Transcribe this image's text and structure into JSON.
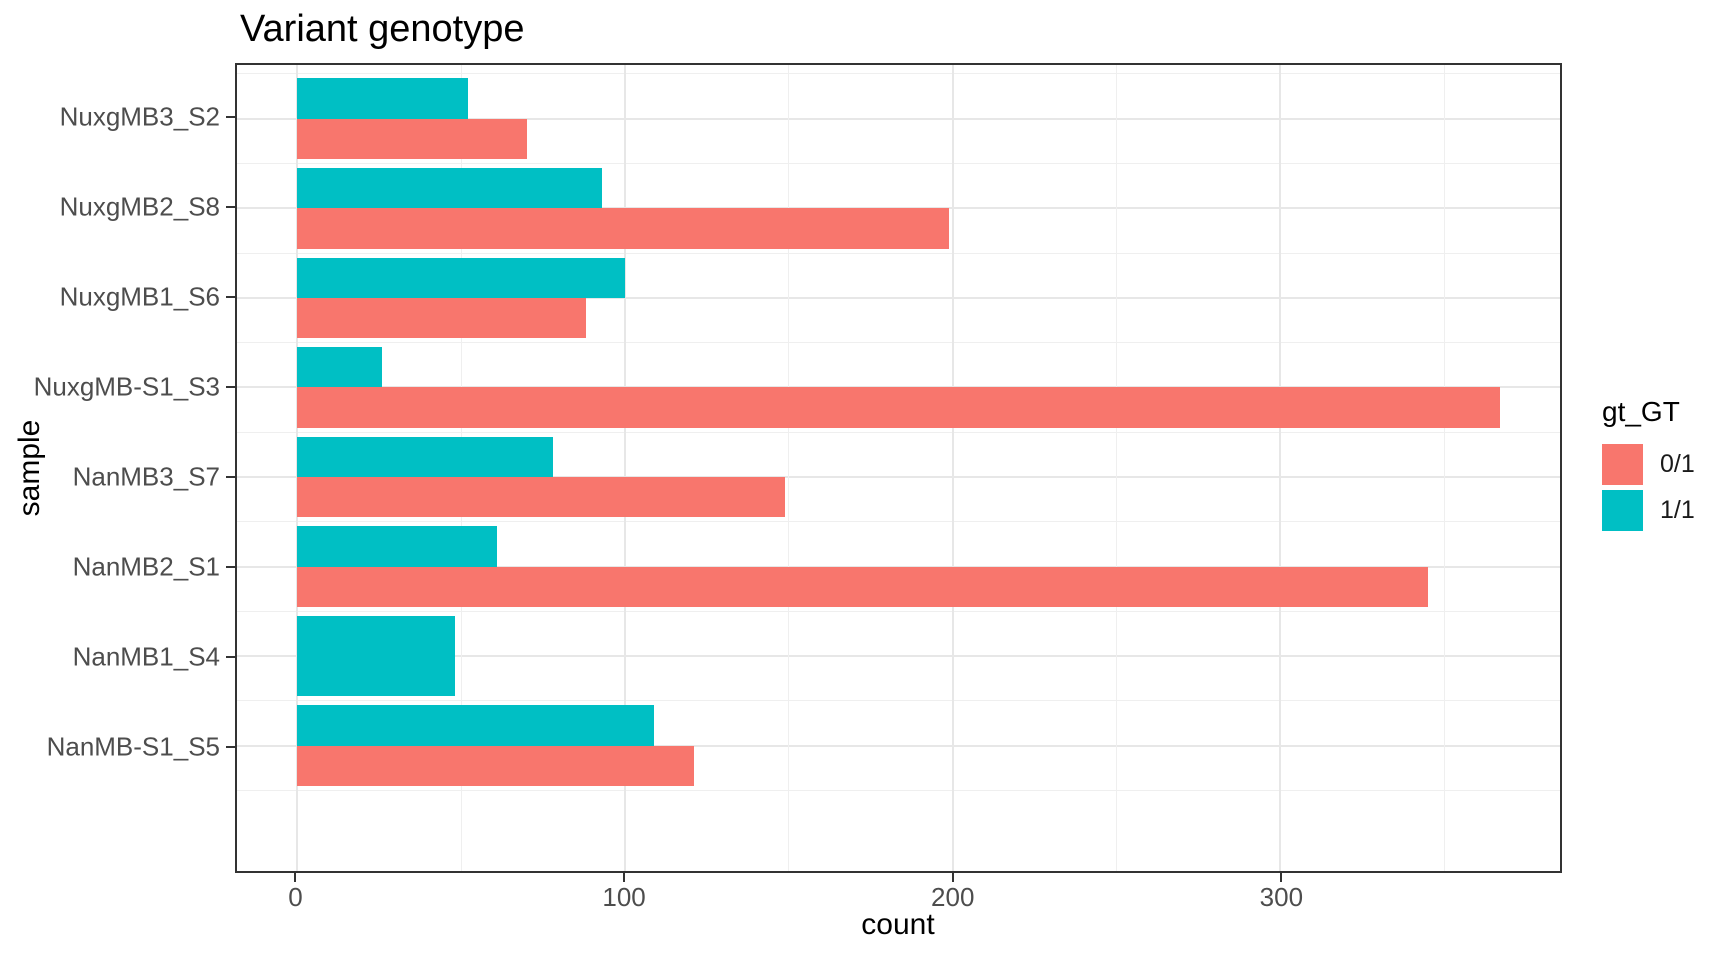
{
  "chart_data": {
    "type": "bar",
    "orientation": "horizontal",
    "title": "Variant genotype",
    "xlabel": "count",
    "ylabel": "sample",
    "categories": [
      "NuxgMB3_S2",
      "NuxgMB2_S8",
      "NuxgMB1_S6",
      "NuxgMB-S1_S3",
      "NanMB3_S7",
      "NanMB2_S1",
      "NanMB1_S4",
      "NanMB-S1_S5"
    ],
    "series": [
      {
        "name": "0/1",
        "color": "#F8766D",
        "values": [
          70,
          199,
          88,
          367,
          149,
          345,
          null,
          121
        ]
      },
      {
        "name": "1/1",
        "color": "#00BFC4",
        "values": [
          52,
          93,
          100,
          26,
          78,
          61,
          48,
          109
        ]
      }
    ],
    "x_ticks": [
      0,
      100,
      200,
      300
    ],
    "x_minor_ticks": [
      50,
      150,
      250,
      350
    ],
    "xlim": [
      -18.4,
      385.4
    ],
    "grid": true,
    "legend": {
      "title": "gt_GT",
      "position": "right",
      "entries": [
        "0/1",
        "1/1"
      ]
    }
  },
  "style": {
    "panel_border_color": "#333333",
    "major_grid_color": "#e7e7e7",
    "minor_grid_color": "#efefef",
    "tick_color": "#333333",
    "tick_label_color": "#4d4d4d",
    "title_color": "#000000"
  }
}
